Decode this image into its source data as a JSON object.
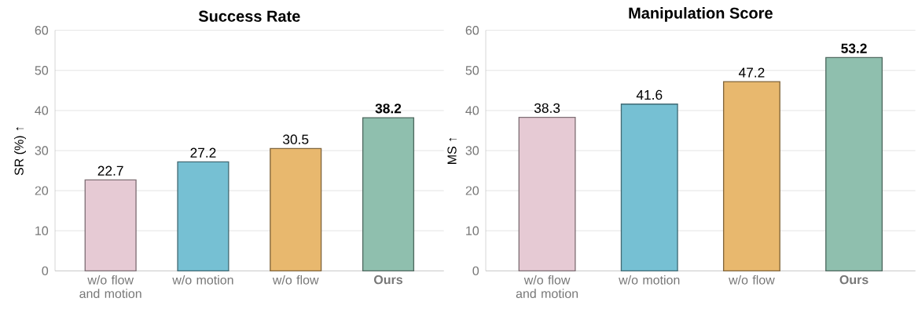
{
  "chart_data": [
    {
      "type": "bar",
      "title": "Success Rate",
      "ylabel": "SR (%) ↑",
      "categories": [
        "w/o flow and motion",
        "w/o motion",
        "w/o flow",
        "**Ours**"
      ],
      "values": [
        22.7,
        27.2,
        30.5,
        38.2
      ],
      "colors": [
        "#e6cad4",
        "#76c0d3",
        "#e8b86e",
        "#8fbfae"
      ],
      "value_labels": [
        "22.7",
        "27.2",
        "30.5",
        "**38.2**"
      ],
      "ylim": [
        0,
        60
      ],
      "yticks": [
        0,
        10,
        20,
        30,
        40,
        50,
        60
      ],
      "grid": "y"
    },
    {
      "type": "bar",
      "title": "Manipulation Score",
      "ylabel": "MS ↑",
      "categories": [
        "w/o flow and motion",
        "w/o motion",
        "w/o flow",
        "**Ours**"
      ],
      "values": [
        38.3,
        41.6,
        47.2,
        53.2
      ],
      "colors": [
        "#e6cad4",
        "#76c0d3",
        "#e8b86e",
        "#8fbfae"
      ],
      "value_labels": [
        "38.3",
        "41.6",
        "47.2",
        "**53.2**"
      ],
      "ylim": [
        0,
        60
      ],
      "yticks": [
        0,
        10,
        20,
        30,
        40,
        50,
        60
      ],
      "grid": "y"
    }
  ]
}
